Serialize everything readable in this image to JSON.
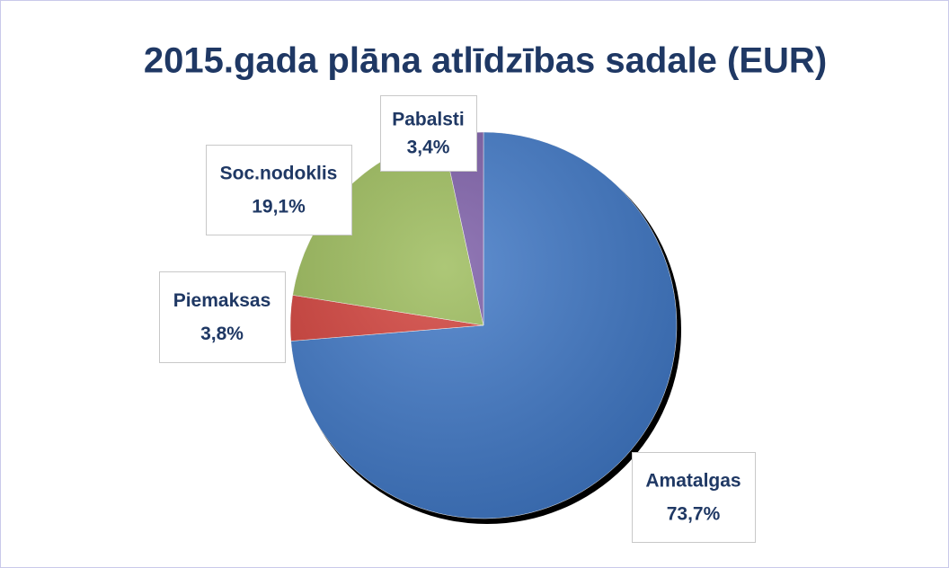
{
  "chart_data": {
    "type": "pie",
    "title": "2015.gada plāna atlīdzības sadale (EUR)",
    "categories": [
      "Amatalgas",
      "Piemaksas",
      "Soc.nodoklis",
      "Pabalsti"
    ],
    "values": [
      73.7,
      3.8,
      19.1,
      3.4
    ],
    "value_labels": [
      "73,7%",
      "3,8%",
      "19,1%",
      "3,4%"
    ],
    "colors": [
      "#3e77c6",
      "#d23f39",
      "#9bbb59",
      "#7a5ba6"
    ]
  }
}
